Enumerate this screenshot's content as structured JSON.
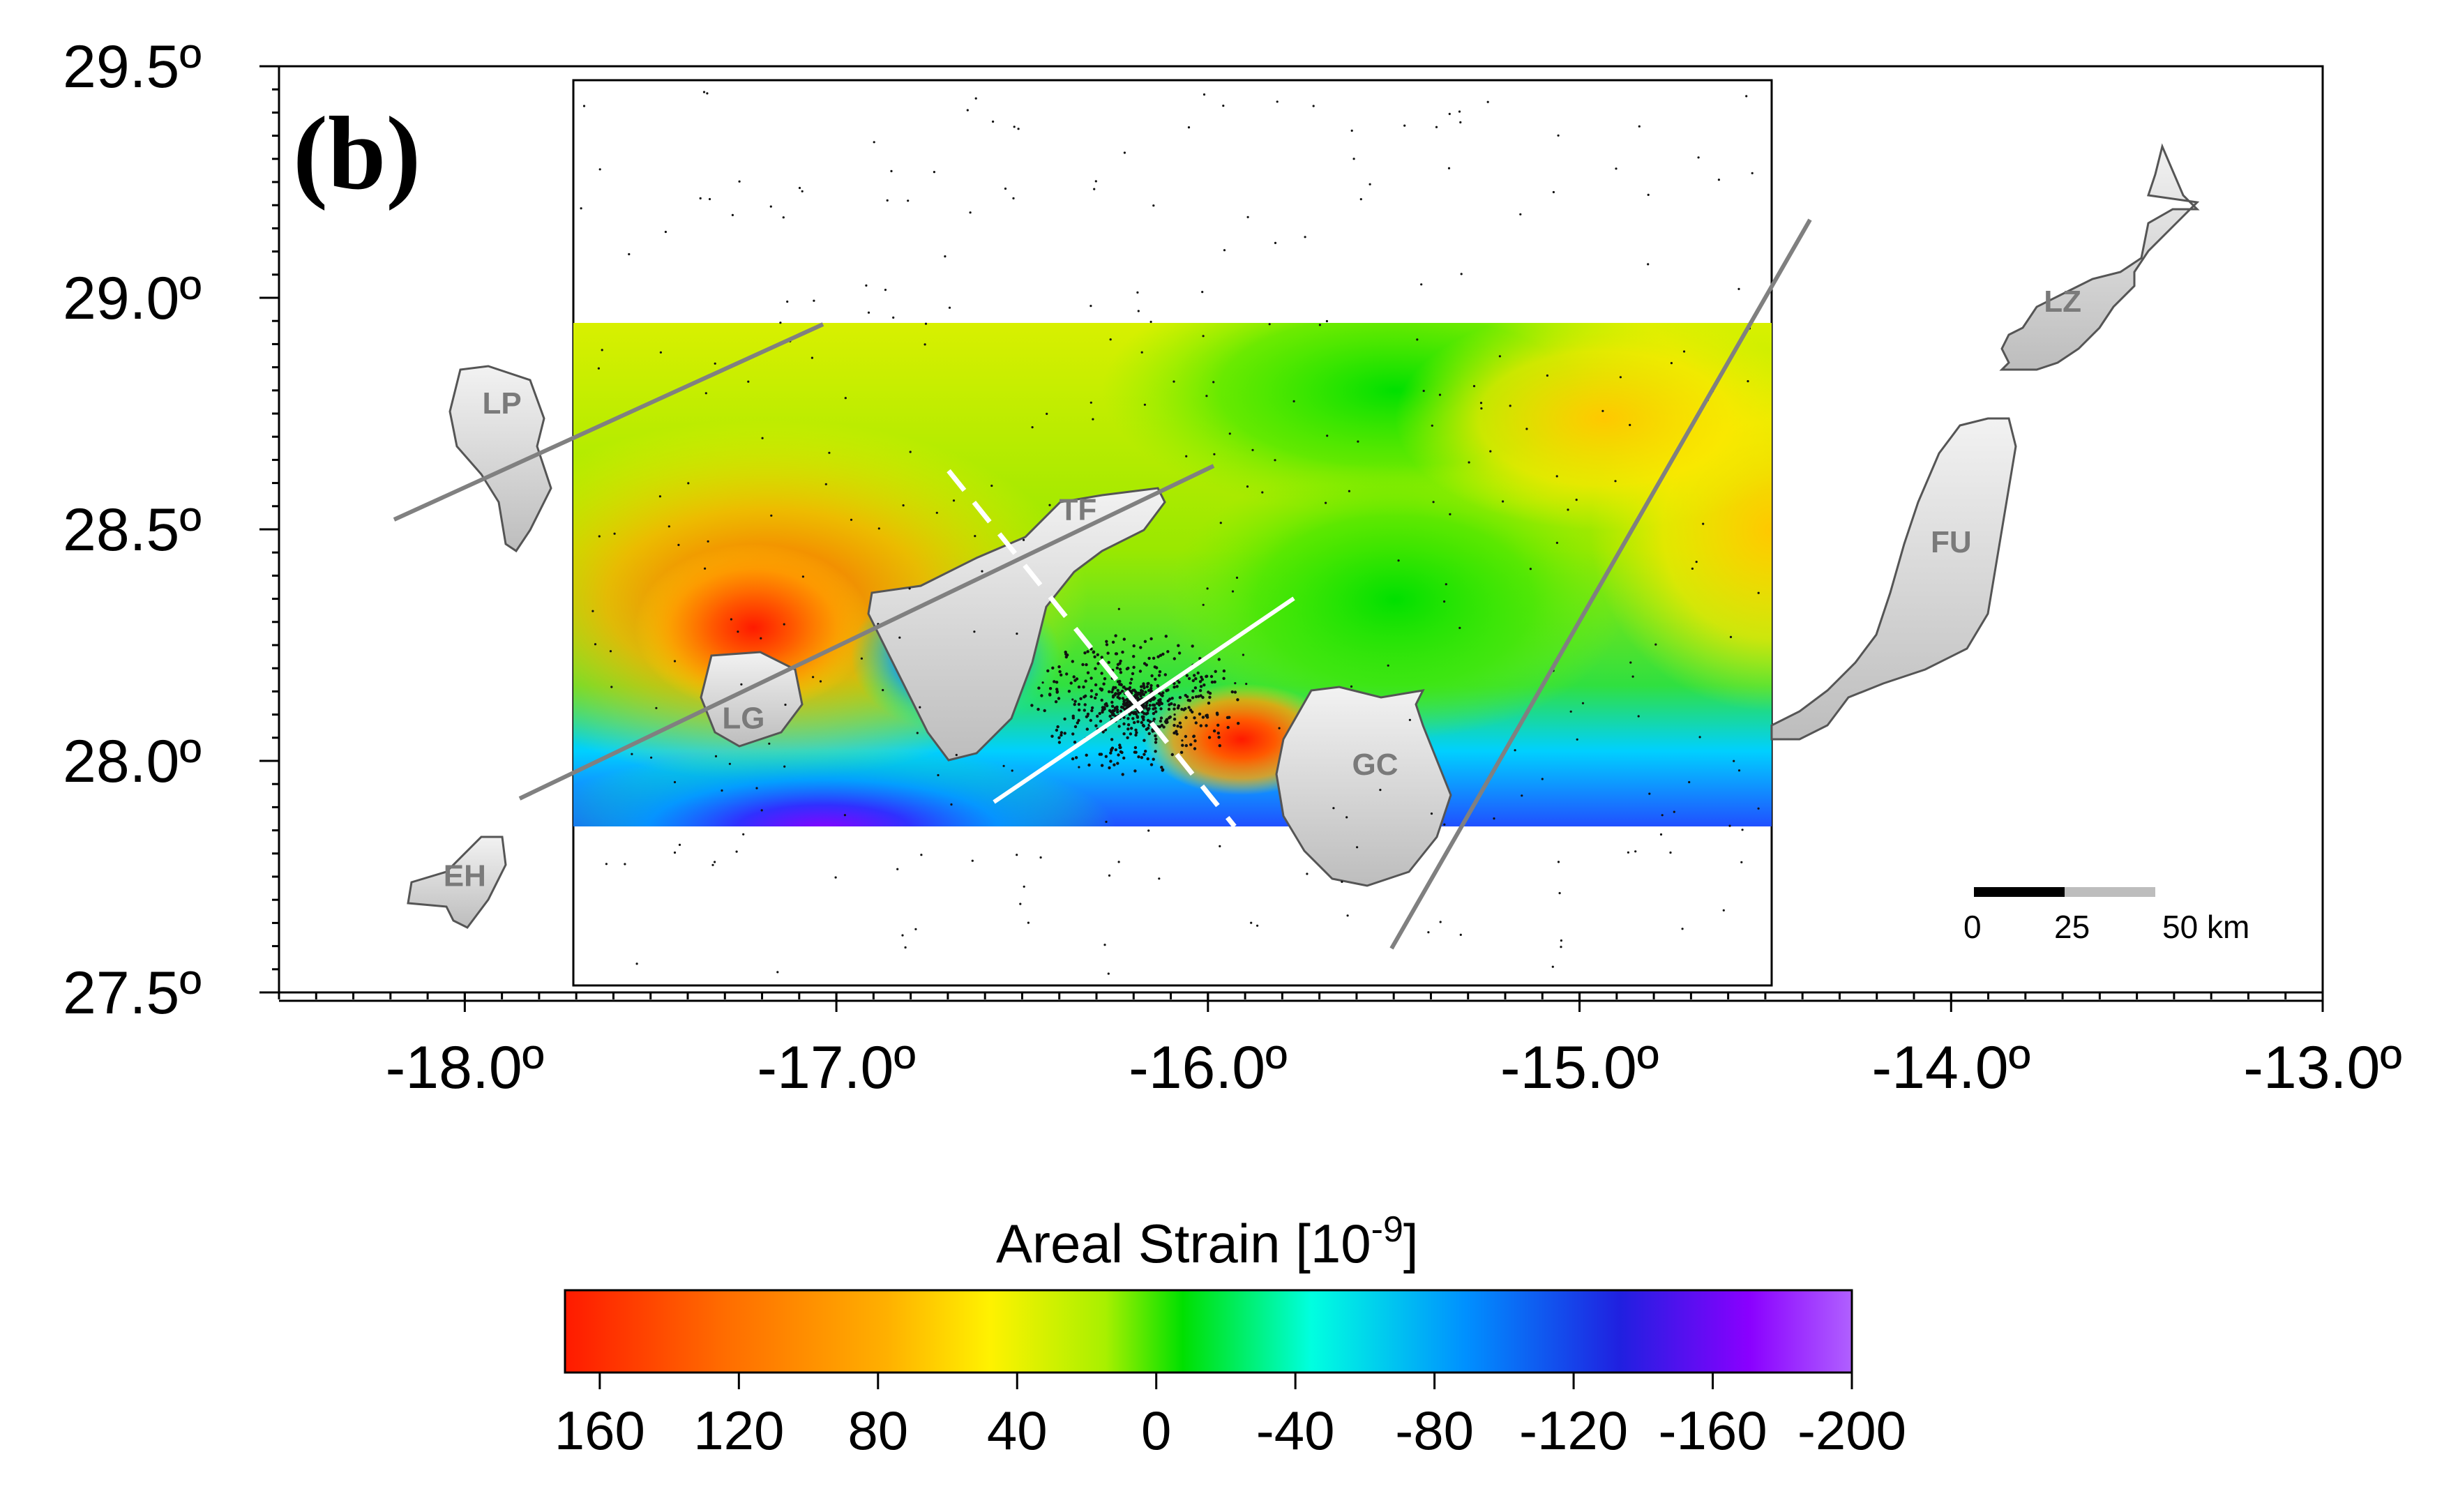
{
  "panel_label": "(b)",
  "axes": {
    "lon_ticks": [
      {
        "label": "-18.0º",
        "value": -18.0
      },
      {
        "label": "-17.0º",
        "value": -17.0
      },
      {
        "label": "-16.0º",
        "value": -16.0
      },
      {
        "label": "-15.0º",
        "value": -15.0
      },
      {
        "label": "-14.0º",
        "value": -14.0
      },
      {
        "label": "-13.0º",
        "value": -13.0
      }
    ],
    "lat_ticks": [
      {
        "label": "29.5º",
        "value": 29.5
      },
      {
        "label": "29.0º",
        "value": 29.0
      },
      {
        "label": "28.5º",
        "value": 28.5
      },
      {
        "label": "28.0º",
        "value": 28.0
      },
      {
        "label": "27.5º",
        "value": 27.5
      }
    ],
    "lon_range": [
      -18.5,
      -13.0
    ],
    "lat_range": [
      27.5,
      29.5
    ]
  },
  "islands": [
    {
      "code": "LP",
      "lon": -17.9,
      "lat": 28.75
    },
    {
      "code": "TF",
      "lon": -16.35,
      "lat": 28.52
    },
    {
      "code": "LG",
      "lon": -17.25,
      "lat": 28.07
    },
    {
      "code": "EH",
      "lon": -18.0,
      "lat": 27.73
    },
    {
      "code": "GC",
      "lon": -15.55,
      "lat": 27.97
    },
    {
      "code": "LZ",
      "lon": -13.7,
      "lat": 28.97
    },
    {
      "code": "FU",
      "lon": -14.0,
      "lat": 28.45
    }
  ],
  "scale_bar": {
    "labels": [
      "0",
      "25",
      "50 km"
    ],
    "unit": "km"
  },
  "colorbar": {
    "title_main": "Areal Strain [10",
    "title_exp": "-9",
    "title_end": "]",
    "ticks": [
      "160",
      "120",
      "80",
      "40",
      "0",
      "-40",
      "-80",
      "-120",
      "-160",
      "-200"
    ],
    "range": [
      170,
      -200
    ],
    "colors": [
      "#ff1a00",
      "#ff6a00",
      "#ffb000",
      "#fff200",
      "#a8f000",
      "#00e000",
      "#00ffe0",
      "#0090ff",
      "#2020e0",
      "#8a00ff",
      "#b060ff"
    ]
  },
  "study_area": {
    "lon": [
      -17.7,
      -14.5
    ],
    "lat": [
      27.87,
      28.95
    ]
  }
}
